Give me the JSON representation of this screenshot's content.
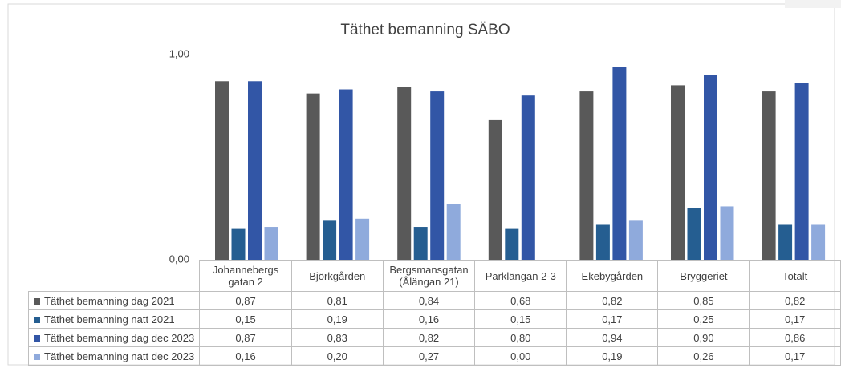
{
  "chart_data": {
    "type": "bar",
    "title": "Täthet bemanning SÄBO",
    "categories": [
      "Johannebergs gatan 2",
      "Björkgården",
      "Bergsmansgatan (Ålängan 21)",
      "Parklängan 2-3",
      "Ekebygården",
      "Bryggeriet",
      "Totalt"
    ],
    "series": [
      {
        "name": "Täthet bemanning dag 2021",
        "color": "#595959",
        "values": [
          0.87,
          0.81,
          0.84,
          0.68,
          0.82,
          0.85,
          0.82
        ],
        "value_labels": [
          "0,87",
          "0,81",
          "0,84",
          "0,68",
          "0,82",
          "0,85",
          "0,82"
        ]
      },
      {
        "name": "Täthet bemanning natt 2021",
        "color": "#255e91",
        "values": [
          0.15,
          0.19,
          0.16,
          0.15,
          0.17,
          0.25,
          0.17
        ],
        "value_labels": [
          "0,15",
          "0,19",
          "0,16",
          "0,15",
          "0,17",
          "0,25",
          "0,17"
        ]
      },
      {
        "name": "Täthet bemanning dag  dec 2023",
        "color": "#3256a6",
        "values": [
          0.87,
          0.83,
          0.82,
          0.8,
          0.94,
          0.9,
          0.86
        ],
        "value_labels": [
          "0,87",
          "0,83",
          "0,82",
          "0,80",
          "0,94",
          "0,90",
          "0,86"
        ]
      },
      {
        "name": "Täthet bemanning natt dec 2023",
        "color": "#8faadc",
        "values": [
          0.16,
          0.2,
          0.27,
          0.0,
          0.19,
          0.26,
          0.17
        ],
        "value_labels": [
          "0,16",
          "0,20",
          "0,27",
          "0,00",
          "0,19",
          "0,26",
          "0,17"
        ]
      }
    ],
    "ylim": [
      0,
      1
    ],
    "yticks": [
      {
        "value": 0,
        "label": "0,00"
      },
      {
        "value": 1,
        "label": "1,00"
      }
    ],
    "grid": false
  }
}
